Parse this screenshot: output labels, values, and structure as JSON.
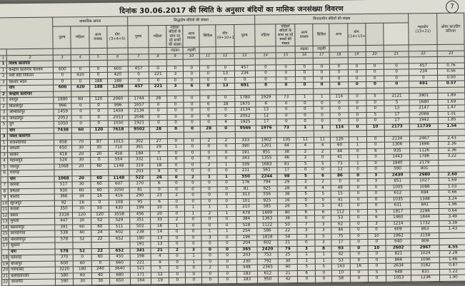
{
  "page": {
    "title": "दिनांक 30.06.2017 की स्थिति के अनुसार बंदियों का मासिक जनसंख्या विवरण",
    "page_number": "7"
  },
  "headers": {
    "group_capacity": "वास्तविक क्षमता",
    "group_convicted": "सिद्धदोष बंदियों की संख्या",
    "group_undertrial": "विचाराधीन बंदियों की संख्या",
    "total": "महायोग (13+21)",
    "overcrowd": "ओवर क्राउडिंग प्रतिशत",
    "sub_convicted": [
      "पुरुष",
      "महिला",
      "अल्प वयस्क",
      "योग (3+4+5)",
      "पुरुष",
      "महिला",
      "महिला बंदियों के साथ रह रहे बच्चों की संख्या",
      "अल्प वयस्क",
      "सिविल",
      "योग (9+10+11+12)"
    ],
    "sub_undertrial": [
      "पुरुष",
      "महिला",
      "महिला बंदियों के साथ रह रहे बच्चों की संख्या",
      "अल्प वयस्क",
      "सिविल",
      "अन्य",
      "योग (14+15+16+17+19+20)"
    ],
    "children": [
      "लड़का",
      "लड़की"
    ],
    "colnums": [
      "1",
      "2",
      "3",
      "4",
      "5",
      "6",
      "7",
      "8",
      "9",
      "10",
      "11",
      "12",
      "13",
      "14",
      "15",
      "16",
      "17",
      "18",
      "19",
      "20",
      "21",
      "22",
      "23"
    ]
  },
  "rows": [
    {
      "t": "sec",
      "v": [
        "1",
        "विशेष कारागार",
        "",
        "",
        "",
        "",
        "",
        "",
        "",
        "",
        "",
        "",
        "",
        "",
        "",
        "",
        "",
        "",
        "",
        "",
        "",
        "",
        ""
      ]
    },
    {
      "v": [
        "1",
        "केन्द्रीय कारागार पश्चिम",
        "600",
        "0",
        "0",
        "600",
        "457",
        "0",
        "0",
        "0",
        "0",
        "0",
        "457",
        "0",
        "0",
        "0",
        "0",
        "0",
        "0",
        "0",
        "0",
        "457",
        "0.76"
      ]
    },
    {
      "v": [
        "2",
        "नारी बंदी निकेतन",
        "0",
        "420",
        "0",
        "420",
        "0",
        "221",
        "3",
        "0",
        "0",
        "13",
        "234",
        "0",
        "0",
        "0",
        "0",
        "0",
        "0",
        "0",
        "0",
        "234",
        "0.56"
      ]
    },
    {
      "v": [
        "3",
        "किशोर सदन",
        "0",
        "0",
        "188",
        "188",
        "0",
        "0",
        "0",
        "0",
        "0",
        "0",
        "0",
        "0",
        "0",
        "0",
        "0",
        "0",
        "0",
        "0",
        "0",
        "0",
        "0.00"
      ]
    },
    {
      "t": "total",
      "v": [
        "",
        "योग",
        "600",
        "420",
        "188",
        "1208",
        "457",
        "221",
        "3",
        "6",
        "0",
        "13",
        "691",
        "0",
        "0",
        "0",
        "0",
        "0",
        "0",
        "0",
        "0",
        "691",
        "0.57"
      ]
    },
    {
      "t": "sec",
      "v": [
        "2",
        "केन्द्रीय कारागार",
        "",
        "",
        "",
        "",
        "",
        "",
        "",
        "",
        "",
        "",
        "",
        "",
        "",
        "",
        "",
        "",
        "",
        "",
        "",
        "",
        ""
      ]
    },
    {
      "v": [
        "1",
        "रायपुर",
        "1880",
        "60",
        "120",
        "2060",
        "1744",
        "28",
        "0",
        "0",
        "8",
        "0",
        "1780",
        "1929",
        "73",
        "1",
        "1",
        "114",
        "0",
        "5",
        "2121",
        "3901",
        "1.89"
      ]
    },
    {
      "v": [
        "2",
        "बिलासपुर",
        "996",
        "0",
        "0",
        "996",
        "1657",
        "0",
        "0",
        "0",
        "6",
        "18",
        "1675",
        "6",
        "0",
        "0",
        "0",
        "0",
        "0",
        "0",
        "5",
        "1680",
        "1.69"
      ]
    },
    {
      "v": [
        "3",
        "अम्बिकापुर",
        "1459",
        "0",
        "0",
        "1459",
        "2134",
        "0",
        "0",
        "0",
        "0",
        "0",
        "2134",
        "13",
        "0",
        "0",
        "0",
        "0",
        "0",
        "0",
        "13",
        "2147",
        "1.47"
      ]
    },
    {
      "v": [
        "4",
        "जगदलपुर",
        "2053",
        "0",
        "0",
        "2053",
        "2046",
        "0",
        "0",
        "0",
        "6",
        "0",
        "2052",
        "12",
        "0",
        "0",
        "0",
        "0",
        "0",
        "5",
        "17",
        "2069",
        "1.01"
      ]
    },
    {
      "v": [
        "5",
        "दुर्ग",
        "1050",
        "0",
        "0",
        "1050",
        "1921",
        "0",
        "0",
        "0",
        "0",
        "4",
        "1925",
        "17",
        "0",
        "0",
        "0",
        "0",
        "0",
        "0",
        "17",
        "1942",
        "1.85"
      ]
    },
    {
      "t": "total",
      "v": [
        "",
        "योग",
        "7438",
        "60",
        "120",
        "7618",
        "9502",
        "28",
        "0",
        "0",
        "28",
        "0",
        "9566",
        "1976",
        "73",
        "1",
        "1",
        "114",
        "0",
        "10",
        "2173",
        "11739",
        "1.54"
      ]
    },
    {
      "t": "sec",
      "v": [
        "3",
        "जिला कारागार",
        "",
        "",
        "",
        "",
        "",
        "",
        "",
        "",
        "",
        "",
        "",
        "",
        "",
        "",
        "",
        "",
        "",
        "",
        "",
        "",
        ""
      ]
    },
    {
      "v": [
        "1",
        "राजनांदगांव",
        "858",
        "70",
        "87",
        "1015",
        "302",
        "27",
        "0",
        "0",
        "2",
        "2",
        "333",
        "1902",
        "105",
        "11",
        "11",
        "126",
        "1",
        "0",
        "2134",
        "2467",
        "2.43"
      ]
    },
    {
      "v": [
        "2",
        "धमतरी",
        "650",
        "30",
        "30",
        "710",
        "361",
        "29",
        "1",
        "0",
        "0",
        "0",
        "390",
        "1201",
        "44",
        "4",
        "4",
        "60",
        "1",
        "0",
        "1306",
        "1696",
        "2.36"
      ]
    },
    {
      "v": [
        "3",
        "कांकेर",
        "418",
        "20",
        "20",
        "458",
        "184",
        "7",
        "0",
        "0",
        "0",
        "0",
        "191",
        "851",
        "38",
        "2",
        "2",
        "44",
        "0",
        "6",
        "935",
        "1126",
        "2.36"
      ]
    },
    {
      "v": [
        "4",
        "महासमुंद",
        "524",
        "30",
        "0",
        "554",
        "332",
        "11",
        "0",
        "0",
        "0",
        "0",
        "343",
        "1355",
        "46",
        "2",
        "0",
        "41",
        "1",
        "0",
        "1443",
        "1786",
        "3.22"
      ]
    },
    {
      "v": [
        "5",
        "जशपुर",
        "1068",
        "20",
        "60",
        "1148",
        "319",
        "18",
        "0",
        "0",
        "2",
        "1",
        "339",
        "1683",
        "81",
        "5",
        "5",
        "73",
        "1",
        "0",
        "1840",
        "2179",
        ""
      ]
    },
    {
      "v": [
        "6",
        "रायगढ़",
        "",
        "",
        "",
        "",
        "203",
        "8",
        "0",
        "0",
        "0",
        "0",
        "211",
        "561",
        "17",
        "0",
        "0",
        "12",
        "0",
        "0",
        "590",
        "801",
        ""
      ]
    },
    {
      "t": "total",
      "v": [
        "",
        "योग",
        "1068",
        "20",
        "60",
        "1148",
        "522",
        "26",
        "0",
        "2",
        "1",
        "1",
        "550",
        "2244",
        "98",
        "5",
        "6",
        "86",
        "0",
        "3",
        "2430",
        "2980",
        "2.60"
      ]
    },
    {
      "v": [
        "7",
        "कोरबा",
        "517",
        "30",
        "60",
        "607",
        "170",
        "6",
        "0",
        "0",
        "0",
        "0",
        "176",
        "794",
        "29",
        "2",
        "2",
        "0",
        "0",
        "3",
        "851",
        "1027",
        "1.69"
      ]
    },
    {
      "v": [
        "8",
        "बेमेतरा",
        "930",
        "60",
        "60",
        "1050",
        "81",
        "0",
        "0",
        "0",
        "0",
        "0",
        "81",
        "925",
        "28",
        "4",
        "4",
        "48",
        "0",
        "0",
        "1005",
        "1086",
        "1.03"
      ]
    },
    {
      "v": [
        "9",
        "बालोद",
        "366",
        "34",
        "16",
        "416",
        "290",
        "23",
        "2",
        "0",
        "0",
        "0",
        "313",
        "556",
        "38",
        "5",
        "5",
        "15",
        "0",
        "0",
        "612",
        "694",
        "0.66"
      ]
    },
    {
      "v": [
        "10",
        "सूरजपुर",
        "92",
        "16",
        "0",
        "108",
        "95",
        "6",
        "0",
        "0",
        "0",
        "0",
        "101",
        "925",
        "16",
        "0",
        "0",
        "41",
        "0",
        "0",
        "1035",
        "1348",
        "3.24"
      ]
    },
    {
      "v": [
        "11",
        "कवर्धा",
        "350",
        "30",
        "50",
        "430",
        "199",
        "10",
        "0",
        "1",
        "1",
        "1",
        "210",
        "585",
        "26",
        "5",
        "5",
        "41",
        "0",
        "0",
        "631",
        "841",
        "1.96"
      ]
    },
    {
      "v": [
        "12",
        "बस्तर",
        "3318",
        "120",
        "120",
        "3558",
        "456",
        "20",
        "0",
        "1",
        "2",
        "1",
        "479",
        "1699",
        "80",
        "6",
        "6",
        "112",
        "0",
        "5",
        "1817",
        "2296",
        "0.64"
      ]
    },
    {
      "v": [
        "13",
        "मुंगेली",
        "447",
        "30",
        "52",
        "529",
        "351",
        "33",
        "2",
        "0",
        "0",
        "0",
        "384",
        "1363",
        "38",
        "0",
        "0",
        "53",
        "0",
        "6",
        "1460",
        "1844",
        "3.49"
      ]
    },
    {
      "v": [
        "14",
        "बलरामपुर",
        "391",
        "60",
        "60",
        "511",
        "502",
        "16",
        "1",
        "0",
        "0",
        "0",
        "518",
        "1122",
        "50",
        "7",
        "3",
        "62",
        "0",
        "3",
        "1214",
        "1732",
        "3.39"
      ]
    },
    {
      "v": [
        "15",
        "कोण्डागांव",
        "538",
        "40",
        "24",
        "602",
        "238",
        "14",
        "0",
        "0",
        "1",
        "1",
        "254",
        "586",
        "22",
        "3",
        "3",
        "46",
        "0",
        "0",
        "609",
        "863",
        "1.43"
      ]
    },
    {
      "v": [
        "16",
        "नारायणपुर",
        "578",
        "52",
        "22",
        "652",
        "180",
        "13",
        "0",
        "0",
        "3",
        "0",
        "196",
        "1818",
        "58",
        "3",
        "5",
        "75",
        "0",
        "10",
        "1962",
        "2158",
        ""
      ]
    },
    {
      "v": [
        "17",
        "सुकमा",
        "",
        "",
        "",
        "",
        "191",
        "13",
        "0",
        "0",
        "0",
        "0",
        "204",
        "602",
        "21",
        "0",
        "3",
        "17",
        "0",
        "0",
        "640",
        "809",
        ""
      ]
    },
    {
      "t": "total",
      "v": [
        "",
        "योग",
        "578",
        "52",
        "22",
        "652",
        "341",
        "21",
        "2",
        "3",
        "0",
        "0",
        "365",
        "2420",
        "79",
        "3",
        "8",
        "93",
        "0",
        "10",
        "2602",
        "2967",
        "4.55"
      ]
    },
    {
      "v": [
        "18",
        "दंतेवाड़ा",
        "370",
        "0",
        "60",
        "450",
        "198",
        "4",
        "0",
        "1",
        "0",
        "0",
        "203",
        "753",
        "25",
        "1",
        "1",
        "42",
        "0",
        "0",
        "821",
        "1024",
        "2.28"
      ]
    },
    {
      "v": [
        "19",
        "बीजापुर",
        "600",
        "60",
        "0",
        "660",
        "221",
        "9",
        "0",
        "1",
        "0",
        "0",
        "230",
        "792",
        "30",
        "1",
        "1",
        "53",
        "0",
        "0",
        "866",
        "1096",
        "1.66"
      ]
    },
    {
      "v": [
        "20",
        "गरियाबंद",
        "3220",
        "180",
        "240",
        "3640",
        "521",
        "5",
        "0",
        "0",
        "2",
        "0",
        "548",
        "2365",
        "90",
        "5",
        "5",
        "163",
        "16",
        "0",
        "2634",
        "3182",
        "0.87"
      ]
    },
    {
      "v": [
        "21",
        "बलौदाबाजार",
        "580",
        "60",
        "40",
        "680",
        "171",
        "12",
        "0",
        "0",
        "0",
        "0",
        "183",
        "612",
        "21",
        "6",
        "0",
        "10",
        "0",
        "5",
        "648",
        "831",
        "1.22"
      ]
    },
    {
      "v": [
        "22",
        "जांजगीर",
        "590",
        "30",
        "30",
        "650",
        "164",
        "19",
        "0",
        "0",
        "0",
        "0",
        "183",
        "950",
        "42",
        "0",
        "0",
        "58",
        "0",
        "0",
        "1053",
        "1236",
        "1.90"
      ]
    }
  ]
}
